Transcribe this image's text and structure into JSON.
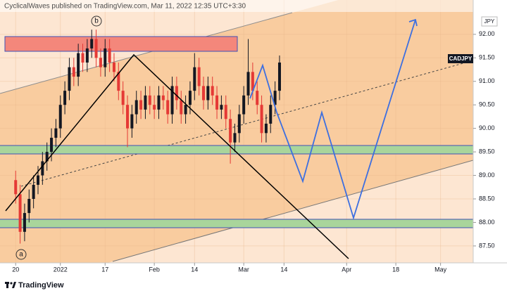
{
  "header": "CyclicalWaves published on TradingView.com, Mar 11, 2022 12:35 UTC+3:30",
  "footer": "TradingView",
  "chart_data": {
    "type": "candlestick",
    "symbol": "CADJPY",
    "currency": "JPY",
    "wave_labels": [
      "a",
      "b"
    ],
    "up_color": "#131722",
    "down_color": "#e53935",
    "xlim": [
      -3.5,
      102.3
    ],
    "xticks": [
      {
        "value": 0,
        "label": "20"
      },
      {
        "value": 10,
        "label": "2022"
      },
      {
        "value": 20,
        "label": "17"
      },
      {
        "value": 31,
        "label": "Feb"
      },
      {
        "value": 40,
        "label": "14"
      },
      {
        "value": 51,
        "label": "Mar"
      },
      {
        "value": 60,
        "label": "14"
      },
      {
        "value": 74,
        "label": "Apr"
      },
      {
        "value": 85,
        "label": "18"
      },
      {
        "value": 95,
        "label": "May"
      }
    ],
    "ylim": [
      87.14,
      92.73
    ],
    "yticks": [
      {
        "value": 87.5,
        "label": "87.50"
      },
      {
        "value": 88,
        "label": "88.00"
      },
      {
        "value": 88.5,
        "label": "88.50"
      },
      {
        "value": 89,
        "label": "89.00"
      },
      {
        "value": 89.5,
        "label": "89.50"
      },
      {
        "value": 90,
        "label": "90.00"
      },
      {
        "value": 90.5,
        "label": "90.50"
      },
      {
        "value": 91,
        "label": "91.00"
      },
      {
        "value": 91.5,
        "label": "91.50"
      },
      {
        "value": 92,
        "label": "92.00"
      }
    ],
    "open": [
      88.9,
      88.6,
      87.8,
      88.2,
      88.5,
      88.8,
      89.0,
      89.3,
      89.5,
      89.8,
      90.0,
      90.5,
      90.8,
      91.3,
      91.1,
      91.6,
      91.4,
      91.7,
      91.9,
      91.5,
      91.3,
      91.7,
      91.4,
      91.2,
      90.8,
      90.5,
      90.0,
      90.3,
      90.6,
      90.4,
      90.7,
      90.5,
      90.4,
      90.7,
      90.6,
      90.3,
      90.9,
      90.6,
      90.3,
      90.5,
      90.8,
      91.3,
      90.9,
      90.6,
      90.9,
      90.7,
      90.4,
      90.5,
      90.2,
      89.7,
      89.9,
      90.3,
      90.7,
      91.2,
      90.8,
      90.5,
      89.9,
      90.1,
      90.5,
      90.8
    ],
    "high": [
      89.1,
      88.8,
      88.4,
      88.7,
      89.0,
      89.2,
      89.5,
      89.7,
      90.0,
      90.2,
      90.7,
      91.0,
      91.5,
      91.5,
      91.8,
      91.8,
      91.9,
      92.1,
      92.1,
      91.7,
      91.9,
      91.9,
      91.6,
      91.4,
      91.0,
      90.7,
      90.5,
      90.8,
      90.8,
      90.9,
      90.9,
      90.7,
      90.9,
      90.9,
      90.8,
      91.1,
      91.1,
      90.8,
      90.7,
      91.0,
      91.6,
      91.5,
      91.1,
      91.1,
      91.1,
      90.9,
      90.7,
      90.7,
      90.4,
      90.1,
      90.5,
      90.9,
      91.9,
      91.4,
      91.0,
      90.7,
      90.3,
      90.7,
      91.0,
      91.55
    ],
    "low": [
      88.4,
      87.55,
      87.6,
      88.0,
      88.3,
      88.6,
      88.8,
      89.1,
      89.3,
      89.6,
      89.8,
      90.3,
      90.6,
      90.9,
      90.9,
      91.2,
      91.2,
      91.5,
      91.3,
      91.1,
      91.1,
      91.2,
      91.0,
      90.6,
      90.3,
      89.6,
      89.8,
      90.1,
      90.2,
      90.2,
      90.3,
      90.2,
      90.2,
      90.4,
      90.1,
      90.1,
      90.4,
      90.1,
      90.1,
      90.3,
      90.6,
      90.7,
      90.4,
      90.4,
      90.5,
      90.2,
      90.2,
      90.0,
      89.25,
      89.5,
      89.7,
      90.1,
      90.5,
      90.6,
      90.3,
      89.7,
      89.7,
      89.9,
      90.3,
      90.6
    ],
    "close": [
      88.6,
      87.8,
      88.2,
      88.5,
      88.8,
      89.0,
      89.3,
      89.5,
      89.8,
      90.0,
      90.5,
      90.8,
      91.3,
      91.1,
      91.6,
      91.4,
      91.7,
      91.9,
      91.5,
      91.3,
      91.7,
      91.4,
      91.2,
      90.8,
      90.5,
      90.0,
      90.3,
      90.6,
      90.4,
      90.7,
      90.5,
      90.4,
      90.7,
      90.6,
      90.3,
      90.9,
      90.6,
      90.3,
      90.5,
      90.8,
      91.3,
      90.9,
      90.6,
      90.9,
      90.7,
      90.4,
      90.5,
      90.2,
      89.7,
      89.9,
      90.3,
      90.7,
      91.2,
      90.8,
      90.5,
      89.9,
      90.1,
      90.5,
      90.8,
      91.4
    ]
  }
}
